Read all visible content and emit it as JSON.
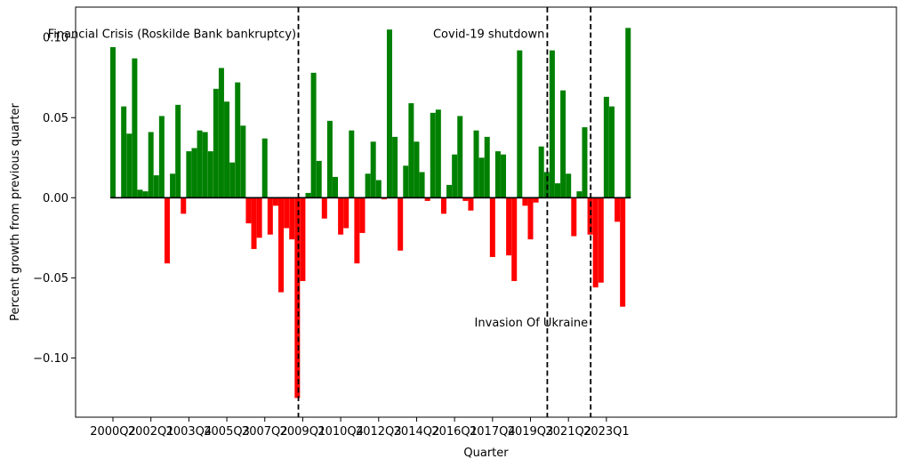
{
  "chart_data": {
    "type": "bar",
    "title": "",
    "xlabel": "Quarter",
    "ylabel": "Percent growth from previous quarter",
    "ylim": [
      -0.137,
      0.119
    ],
    "yticks": [
      -0.1,
      -0.05,
      0.0,
      0.05,
      0.1
    ],
    "ytick_labels": [
      "−0.10",
      "−0.05",
      "0.00",
      "0.05",
      "0.10"
    ],
    "first_quarter": "2000Q2",
    "xtick_labels": [
      "2000Q2",
      "2002Q1",
      "2003Q4",
      "2005Q3",
      "2007Q2",
      "2009Q1",
      "2010Q4",
      "2012Q3",
      "2014Q2",
      "2016Q1",
      "2017Q4",
      "2019Q3",
      "2021Q2",
      "2023Q1"
    ],
    "xtick_indices": [
      0,
      7,
      14,
      21,
      28,
      35,
      42,
      49,
      56,
      63,
      70,
      77,
      84,
      91
    ],
    "positive_color": "#008000",
    "negative_color": "#ff0000",
    "values": [
      0.094,
      0.0,
      0.057,
      0.04,
      0.087,
      0.005,
      0.004,
      0.041,
      0.014,
      0.051,
      -0.041,
      0.015,
      0.058,
      -0.01,
      0.029,
      0.031,
      0.042,
      0.041,
      0.029,
      0.068,
      0.081,
      0.06,
      0.022,
      0.072,
      0.045,
      -0.016,
      -0.032,
      -0.025,
      0.037,
      -0.023,
      -0.005,
      -0.059,
      -0.019,
      -0.026,
      -0.125,
      -0.052,
      0.003,
      0.078,
      0.023,
      -0.013,
      0.048,
      0.013,
      -0.023,
      -0.019,
      0.042,
      -0.041,
      -0.022,
      0.015,
      0.035,
      0.011,
      -0.001,
      0.105,
      0.038,
      -0.033,
      0.02,
      0.059,
      0.035,
      0.016,
      -0.002,
      0.053,
      0.055,
      -0.01,
      0.008,
      0.027,
      0.051,
      -0.002,
      -0.008,
      0.042,
      0.025,
      0.038,
      -0.037,
      0.029,
      0.027,
      -0.036,
      -0.052,
      0.092,
      -0.005,
      -0.026,
      -0.003,
      0.032,
      0.016,
      0.092,
      0.009,
      0.067,
      0.015,
      -0.024,
      0.004,
      0.044,
      -0.023,
      -0.056,
      -0.053,
      0.063,
      0.057,
      -0.015,
      -0.068,
      0.106
    ],
    "vertical_lines": [
      {
        "name": "financial-crisis-line",
        "at_index": 34.2
      },
      {
        "name": "covid-line",
        "at_index": 80.1
      },
      {
        "name": "ukraine-line",
        "at_index": 88.1
      }
    ],
    "annotations": [
      {
        "name": "financial-crisis-annotation",
        "text": "Financial Crisis (Roskilde Bank bankruptcy)",
        "anchor": "end",
        "at_index": 33.8,
        "y_value": 0.102
      },
      {
        "name": "covid-annotation",
        "text": "Covid-19 shutdown",
        "anchor": "end",
        "at_index": 79.6,
        "y_value": 0.102
      },
      {
        "name": "ukraine-annotation",
        "text": "Invasion Of Ukraine",
        "anchor": "end",
        "at_index": 87.6,
        "y_value": -0.078
      }
    ]
  }
}
